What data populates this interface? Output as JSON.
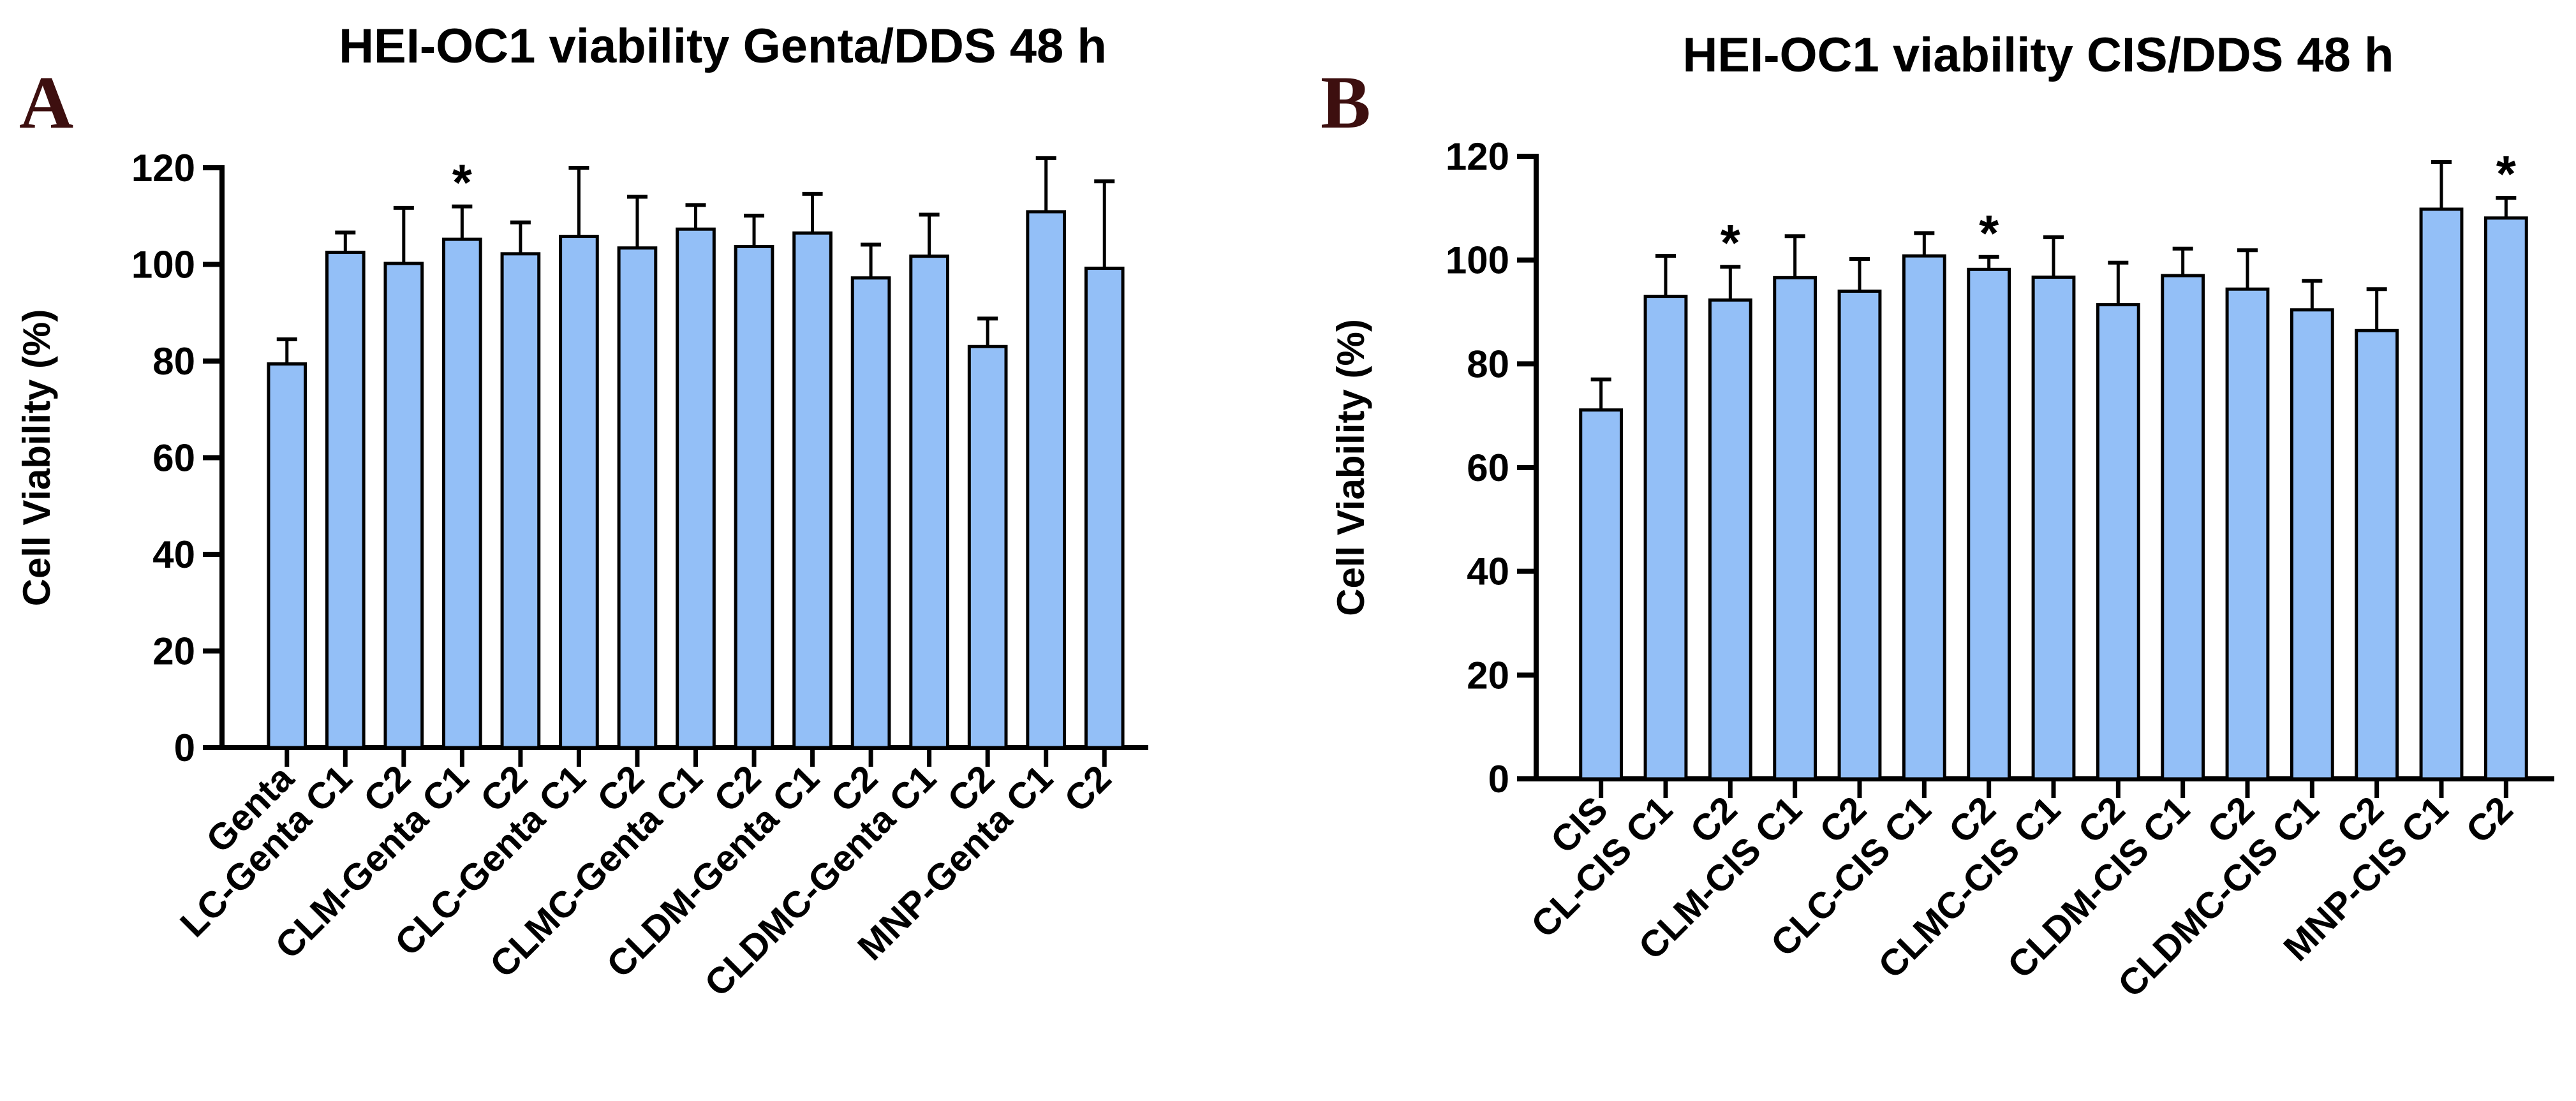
{
  "colors": {
    "bar": "#93bff7",
    "stroke": "#000000",
    "panel_letter": "#3d0f0f"
  },
  "chart_data": [
    {
      "panel": "A",
      "type": "bar",
      "title": "HEI-OC1 viability Genta/DDS 48 h",
      "ylabel": "Cell Viability (%)",
      "xlabel": "",
      "ylim": [
        0,
        120
      ],
      "yticks": [
        0,
        20,
        40,
        60,
        80,
        100,
        120
      ],
      "categories": [
        "Genta",
        "LC-Genta C1",
        "C2",
        "CLM-Genta C1",
        "C2",
        "CLC-Genta C1",
        "C2",
        "CLMC-Genta C1",
        "C2",
        "CLDM-Genta C1",
        "C2",
        "CLDMC-Genta C1",
        "C2",
        "MNP-Genta C1",
        "C2"
      ],
      "values": [
        79.4,
        102.5,
        100.2,
        105.2,
        102.2,
        105.8,
        103.4,
        107.3,
        103.7,
        106.5,
        97.2,
        101.7,
        83.0,
        110.9,
        99.2
      ],
      "error_upper": [
        84.5,
        106.6,
        111.7,
        112.0,
        108.7,
        120.0,
        114.0,
        112.3,
        110.1,
        114.6,
        104.1,
        110.3,
        88.8,
        122.0,
        117.2
      ],
      "significance": [
        "",
        "",
        "",
        "*",
        "",
        "",
        "",
        "",
        "",
        "",
        "",
        "",
        "",
        "",
        ""
      ],
      "grid": false
    },
    {
      "panel": "B",
      "type": "bar",
      "title": "HEI-OC1 viability CIS/DDS 48 h",
      "ylabel": "Cell Viability (%)",
      "xlabel": "",
      "ylim": [
        0,
        120
      ],
      "yticks": [
        0,
        20,
        40,
        60,
        80,
        100,
        120
      ],
      "categories": [
        "CIS",
        "CL-CIS C1",
        "C2",
        "CLM-CIS C1",
        "C2",
        "CLC-CIS C1",
        "C2",
        "CLMC-CIS C1",
        "C2",
        "CLDM-CIS C1",
        "C2",
        "CLDMC-CIS C1",
        "C2",
        "MNP-CIS C1",
        "C2"
      ],
      "values": [
        71.1,
        93.0,
        92.3,
        96.6,
        94.0,
        100.8,
        98.2,
        96.7,
        91.4,
        97.0,
        94.4,
        90.4,
        86.4,
        109.8,
        108.1
      ],
      "error_upper": [
        77.0,
        100.8,
        98.7,
        104.6,
        100.2,
        105.2,
        100.6,
        104.4,
        99.5,
        102.2,
        101.9,
        96.0,
        94.4,
        118.9,
        112.0
      ],
      "significance": [
        "",
        "",
        "*",
        "",
        "",
        "",
        "*",
        "",
        "",
        "",
        "",
        "",
        "",
        "",
        "*"
      ],
      "grid": false
    }
  ]
}
